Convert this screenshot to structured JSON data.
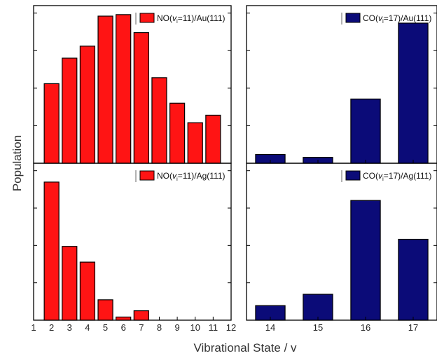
{
  "xlabel": "Vibrational State / v",
  "ylabel": "Population",
  "chart_data": [
    {
      "panel": "top-left",
      "type": "bar",
      "legend": "NO(vi=11)/Au(111)",
      "color": "#ff1414",
      "x": [
        2,
        3,
        4,
        5,
        6,
        7,
        8,
        9,
        10,
        11
      ],
      "values": [
        0.53,
        0.7,
        0.78,
        0.98,
        0.99,
        0.87,
        0.57,
        0.4,
        0.27,
        0.32
      ],
      "xlim": [
        1,
        12
      ],
      "ylim": [
        0,
        1.05
      ]
    },
    {
      "panel": "top-right",
      "type": "bar",
      "legend": "CO(vi=17)/Au(111)",
      "color": "#0b0b78",
      "categories": [
        "14",
        "15",
        "16",
        "17"
      ],
      "values": [
        0.06,
        0.04,
        0.44,
        0.96
      ],
      "ylim": [
        0,
        1.08
      ]
    },
    {
      "panel": "bottom-left",
      "type": "bar",
      "legend": "NO(vi=11)/Ag(111)",
      "color": "#ff1414",
      "x": [
        2,
        3,
        4,
        5,
        6,
        7,
        8,
        9,
        10,
        11
      ],
      "values": [
        0.88,
        0.47,
        0.37,
        0.13,
        0.02,
        0.06,
        0,
        0,
        0,
        0
      ],
      "xlim": [
        1,
        12
      ],
      "ylim": [
        0,
        1.0
      ],
      "xticks": [
        "1",
        "2",
        "3",
        "4",
        "5",
        "6",
        "7",
        "8",
        "9",
        "10",
        "11",
        "12"
      ]
    },
    {
      "panel": "bottom-right",
      "type": "bar",
      "legend": "CO(vi=17)/Ag(111)",
      "color": "#0b0b78",
      "categories": [
        "14",
        "15",
        "16",
        "17"
      ],
      "values": [
        0.09,
        0.16,
        0.74,
        0.5
      ],
      "ylim": [
        0,
        0.97
      ]
    }
  ]
}
